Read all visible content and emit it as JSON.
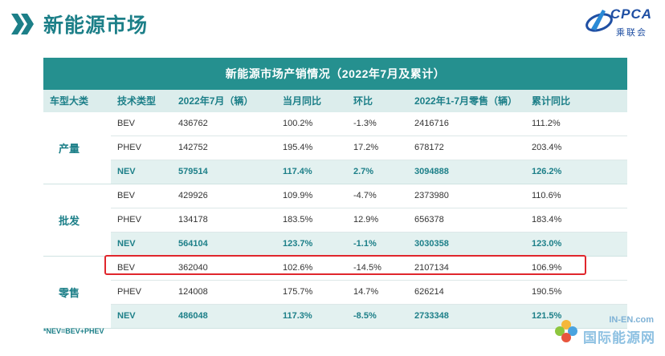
{
  "page": {
    "title": "新能源市场"
  },
  "logo": {
    "text": "CPCA",
    "sub": "乘联会"
  },
  "table": {
    "title": "新能源市场产销情况（2022年7月及累计）",
    "headers": [
      "车型大类",
      "技术类型",
      "2022年7月（辆）",
      "当月同比",
      "环比",
      "2022年1-7月零售（辆）",
      "累计同比"
    ],
    "groups": [
      {
        "label": "产量",
        "rows": [
          [
            "BEV",
            "436762",
            "100.2%",
            "-1.3%",
            "2416716",
            "111.2%"
          ],
          [
            "PHEV",
            "142752",
            "195.4%",
            "17.2%",
            "678172",
            "203.4%"
          ],
          [
            "NEV",
            "579514",
            "117.4%",
            "2.7%",
            "3094888",
            "126.2%"
          ]
        ]
      },
      {
        "label": "批发",
        "rows": [
          [
            "BEV",
            "429926",
            "109.9%",
            "-4.7%",
            "2373980",
            "110.6%"
          ],
          [
            "PHEV",
            "134178",
            "183.5%",
            "12.9%",
            "656378",
            "183.4%"
          ],
          [
            "NEV",
            "564104",
            "123.7%",
            "-1.1%",
            "3030358",
            "123.0%"
          ]
        ]
      },
      {
        "label": "零售",
        "rows": [
          [
            "BEV",
            "362040",
            "102.6%",
            "-14.5%",
            "2107134",
            "106.9%"
          ],
          [
            "PHEV",
            "124008",
            "175.7%",
            "14.7%",
            "626214",
            "190.5%"
          ],
          [
            "NEV",
            "486048",
            "117.3%",
            "-8.5%",
            "2733348",
            "121.5%"
          ]
        ]
      }
    ]
  },
  "footnote": "*NEV=BEV+PHEV",
  "watermark": {
    "top": "IN-EN.com",
    "bottom": "国际能源网"
  },
  "colors": {
    "accent": "#1c7f88",
    "title_bar": "#25908f",
    "highlight": "#e0262c"
  }
}
